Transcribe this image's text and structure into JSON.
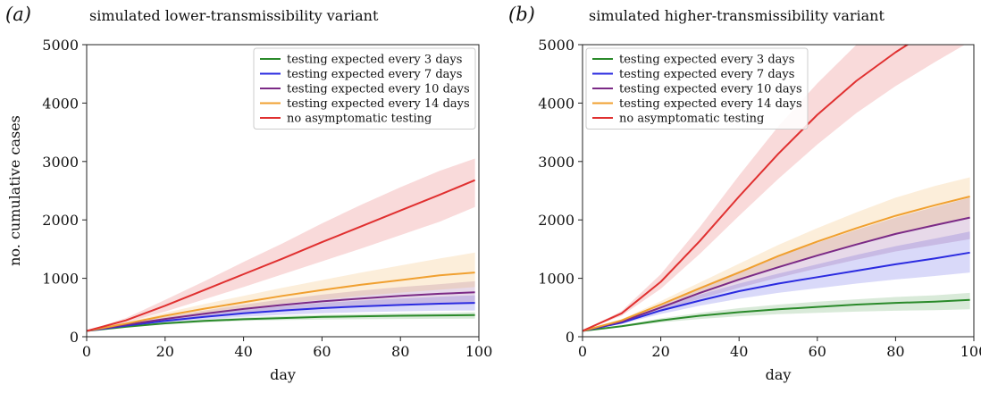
{
  "chart_data": [
    {
      "type": "line",
      "panel_label": "(a)",
      "title": "simulated lower-transmissibility variant",
      "xlabel": "day",
      "ylabel": "no. cumulative cases",
      "xlim": [
        0,
        100
      ],
      "ylim": [
        0,
        5000
      ],
      "xticks": [
        0,
        20,
        40,
        60,
        80,
        100
      ],
      "yticks": [
        0,
        1000,
        2000,
        3000,
        4000,
        5000
      ],
      "x": [
        0,
        10,
        20,
        30,
        40,
        50,
        60,
        70,
        80,
        90,
        99
      ],
      "legend_position": "top-right",
      "series": [
        {
          "name": "testing expected every 3 days",
          "color": "#2a8a2a",
          "values": [
            100,
            170,
            230,
            270,
            300,
            320,
            340,
            350,
            360,
            365,
            370
          ],
          "lower": [
            100,
            160,
            210,
            245,
            270,
            285,
            295,
            300,
            305,
            308,
            310
          ],
          "upper": [
            100,
            180,
            250,
            295,
            330,
            355,
            375,
            390,
            400,
            410,
            420
          ]
        },
        {
          "name": "testing expected every 7 days",
          "color": "#2b2be0",
          "values": [
            100,
            190,
            270,
            340,
            400,
            450,
            490,
            520,
            545,
            565,
            580
          ],
          "lower": [
            100,
            175,
            240,
            295,
            340,
            375,
            400,
            420,
            435,
            445,
            450
          ],
          "upper": [
            100,
            205,
            300,
            385,
            460,
            525,
            580,
            620,
            655,
            685,
            710
          ]
        },
        {
          "name": "testing expected every 10 days",
          "color": "#7b2a86",
          "values": [
            100,
            205,
            305,
            395,
            475,
            545,
            605,
            655,
            700,
            735,
            760
          ],
          "lower": [
            100,
            190,
            270,
            340,
            400,
            450,
            490,
            520,
            545,
            565,
            580
          ],
          "upper": [
            100,
            220,
            340,
            450,
            550,
            640,
            720,
            790,
            850,
            900,
            950
          ]
        },
        {
          "name": "testing expected every 14 days",
          "color": "#f0a030",
          "values": [
            100,
            225,
            360,
            480,
            590,
            700,
            800,
            890,
            970,
            1050,
            1100
          ],
          "lower": [
            100,
            205,
            310,
            405,
            490,
            565,
            635,
            700,
            755,
            805,
            850
          ],
          "upper": [
            100,
            245,
            410,
            560,
            700,
            840,
            970,
            1100,
            1220,
            1340,
            1440
          ]
        },
        {
          "name": "no asymptomatic testing",
          "color": "#e03030",
          "values": [
            100,
            280,
            530,
            800,
            1070,
            1340,
            1620,
            1890,
            2160,
            2430,
            2680
          ],
          "lower": [
            100,
            240,
            430,
            640,
            850,
            1070,
            1290,
            1510,
            1740,
            1970,
            2220
          ],
          "upper": [
            100,
            320,
            630,
            950,
            1280,
            1600,
            1940,
            2260,
            2560,
            2840,
            3050
          ]
        }
      ]
    },
    {
      "type": "line",
      "panel_label": "(b)",
      "title": "simulated higher-transmissibility variant",
      "xlabel": "day",
      "ylabel": "",
      "xlim": [
        0,
        100
      ],
      "ylim": [
        0,
        5000
      ],
      "xticks": [
        0,
        20,
        40,
        60,
        80,
        100
      ],
      "yticks": [
        0,
        1000,
        2000,
        3000,
        4000,
        5000
      ],
      "x": [
        0,
        10,
        20,
        30,
        40,
        50,
        60,
        70,
        80,
        90,
        99
      ],
      "legend_position": "top-left",
      "series": [
        {
          "name": "testing expected every 3 days",
          "color": "#2a8a2a",
          "values": [
            100,
            180,
            280,
            360,
            420,
            470,
            510,
            550,
            580,
            600,
            630
          ],
          "lower": [
            100,
            165,
            245,
            305,
            350,
            385,
            410,
            430,
            445,
            455,
            470
          ],
          "upper": [
            100,
            195,
            315,
            410,
            490,
            550,
            600,
            640,
            680,
            710,
            750
          ]
        },
        {
          "name": "testing expected every 7 days",
          "color": "#2b2be0",
          "values": [
            100,
            240,
            450,
            620,
            780,
            910,
            1020,
            1130,
            1240,
            1340,
            1440
          ],
          "lower": [
            100,
            220,
            390,
            530,
            650,
            750,
            830,
            910,
            980,
            1040,
            1100
          ],
          "upper": [
            100,
            270,
            510,
            720,
            910,
            1080,
            1240,
            1400,
            1550,
            1680,
            1800
          ]
        },
        {
          "name": "testing expected every 10 days",
          "color": "#7b2a86",
          "values": [
            100,
            260,
            500,
            750,
            980,
            1190,
            1390,
            1580,
            1760,
            1910,
            2040
          ],
          "lower": [
            100,
            240,
            440,
            650,
            840,
            1010,
            1170,
            1320,
            1460,
            1570,
            1670
          ],
          "upper": [
            100,
            285,
            560,
            850,
            1120,
            1370,
            1610,
            1830,
            2040,
            2220,
            2380
          ]
        },
        {
          "name": "testing expected every 14 days",
          "color": "#f0a030",
          "values": [
            100,
            280,
            550,
            830,
            1100,
            1380,
            1630,
            1860,
            2070,
            2250,
            2400
          ],
          "lower": [
            100,
            255,
            490,
            730,
            960,
            1190,
            1400,
            1590,
            1770,
            1920,
            2040
          ],
          "upper": [
            100,
            300,
            610,
            930,
            1250,
            1570,
            1860,
            2130,
            2380,
            2580,
            2730
          ]
        },
        {
          "name": "no asymptomatic testing",
          "color": "#e03030",
          "values": [
            100,
            400,
            940,
            1640,
            2400,
            3130,
            3800,
            4380,
            4870,
            5300,
            5700
          ],
          "lower": [
            100,
            360,
            820,
            1420,
            2070,
            2700,
            3290,
            3830,
            4290,
            4700,
            5050
          ],
          "upper": [
            100,
            440,
            1070,
            1880,
            2760,
            3600,
            4340,
            5000,
            5550,
            6000,
            6400
          ]
        }
      ]
    }
  ]
}
